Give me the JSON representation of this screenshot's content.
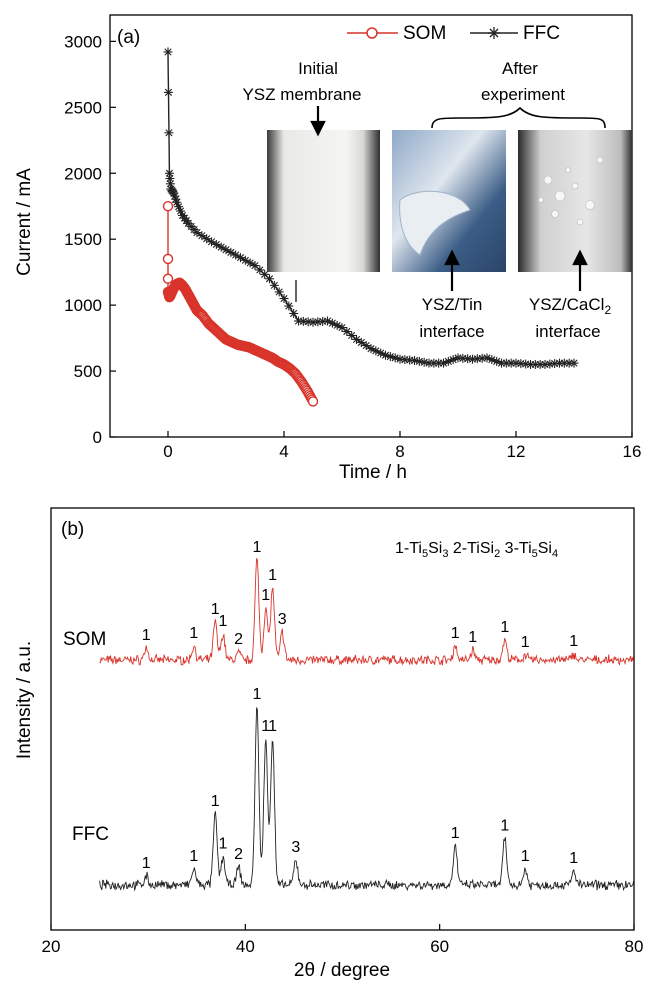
{
  "chart_data": [
    {
      "type": "line",
      "panel_label": "(a)",
      "xlabel": "Time / h",
      "ylabel": "Current / mA",
      "xlim": [
        -2,
        16
      ],
      "ylim": [
        0,
        3200
      ],
      "xticks": [
        "0",
        "4",
        "8",
        "12",
        "16"
      ],
      "yticks": [
        "0",
        "500",
        "1000",
        "1500",
        "2000",
        "2500",
        "3000"
      ],
      "legend_position": "top-right",
      "series": [
        {
          "name": "SOM",
          "color": "#d9342b",
          "marker": "open-circle",
          "x": [
            0,
            0,
            0,
            0,
            0.05,
            0.1,
            0.2,
            0.3,
            0.4,
            0.5,
            0.6,
            0.7,
            0.8,
            0.9,
            1.0,
            1.1,
            1.2,
            1.4,
            1.6,
            1.8,
            2.0,
            2.2,
            2.4,
            2.6,
            2.8,
            3.0,
            3.2,
            3.4,
            3.6,
            3.8,
            4.0,
            4.2,
            4.4,
            4.6,
            4.8,
            5.0
          ],
          "y": [
            1750,
            1350,
            1200,
            1100,
            1060,
            1080,
            1130,
            1160,
            1170,
            1150,
            1120,
            1080,
            1040,
            1000,
            960,
            940,
            920,
            860,
            820,
            780,
            740,
            720,
            700,
            690,
            680,
            660,
            640,
            620,
            600,
            570,
            550,
            520,
            480,
            420,
            350,
            270
          ]
        },
        {
          "name": "FFC",
          "color": "#222222",
          "marker": "asterisk",
          "x": [
            0,
            0.05,
            0.1,
            0.2,
            0.3,
            0.5,
            0.7,
            1.0,
            1.5,
            2.0,
            2.5,
            3.0,
            3.5,
            4.0,
            4.5,
            5.0,
            5.5,
            6.0,
            6.5,
            7.0,
            7.5,
            8.0,
            8.5,
            9.0,
            9.5,
            10.0,
            10.5,
            11.0,
            11.5,
            12.0,
            12.5,
            13.0,
            13.5,
            14.0
          ],
          "y": [
            2920,
            2000,
            1880,
            1850,
            1780,
            1680,
            1620,
            1550,
            1480,
            1420,
            1360,
            1300,
            1200,
            1050,
            880,
            870,
            880,
            830,
            740,
            670,
            620,
            590,
            580,
            560,
            560,
            600,
            590,
            600,
            560,
            560,
            550,
            550,
            560,
            560
          ]
        }
      ],
      "annotations": [
        "Initial",
        "YSZ membrane",
        "After",
        "experiment",
        "YSZ/Tin",
        "interface",
        "YSZ/CaCl2",
        "interface"
      ]
    },
    {
      "type": "line",
      "panel_label": "(b)",
      "xlabel": "2θ / degree",
      "ylabel": "Intensity / a.u.",
      "xlim": [
        20,
        80
      ],
      "xticks": [
        "20",
        "40",
        "60",
        "80"
      ],
      "legend_text": "1-Ti5Si3  2-TiSi2  3-Ti5Si4",
      "series": [
        {
          "name": "SOM",
          "color": "#d9342b",
          "peaks": [
            {
              "x": 29.8,
              "h": 0.12,
              "label": "1"
            },
            {
              "x": 34.7,
              "h": 0.14,
              "label": "1"
            },
            {
              "x": 36.9,
              "h": 0.38,
              "label": "1"
            },
            {
              "x": 37.7,
              "h": 0.26,
              "label": "1"
            },
            {
              "x": 39.3,
              "h": 0.08,
              "label": "2"
            },
            {
              "x": 41.2,
              "h": 1.0,
              "label": "1"
            },
            {
              "x": 42.1,
              "h": 0.52,
              "label": "1"
            },
            {
              "x": 42.8,
              "h": 0.72,
              "label": "1"
            },
            {
              "x": 43.8,
              "h": 0.28,
              "label": "3"
            },
            {
              "x": 61.6,
              "h": 0.14,
              "label": "1"
            },
            {
              "x": 63.4,
              "h": 0.1,
              "label": "1"
            },
            {
              "x": 66.7,
              "h": 0.2,
              "label": "1"
            },
            {
              "x": 68.8,
              "h": 0.05,
              "label": "1"
            },
            {
              "x": 73.8,
              "h": 0.06,
              "label": "1"
            }
          ]
        },
        {
          "name": "FFC",
          "color": "#222222",
          "peaks": [
            {
              "x": 29.8,
              "h": 0.05,
              "label": "1"
            },
            {
              "x": 34.7,
              "h": 0.09,
              "label": "1"
            },
            {
              "x": 36.9,
              "h": 0.4,
              "label": "1"
            },
            {
              "x": 37.7,
              "h": 0.16,
              "label": "1"
            },
            {
              "x": 39.3,
              "h": 0.1,
              "label": "2"
            },
            {
              "x": 41.2,
              "h": 1.0,
              "label": "1"
            },
            {
              "x": 42.1,
              "h": 0.82,
              "label": "1"
            },
            {
              "x": 42.8,
              "h": 0.82,
              "label": "1"
            },
            {
              "x": 45.2,
              "h": 0.14,
              "label": "3"
            },
            {
              "x": 61.6,
              "h": 0.22,
              "label": "1"
            },
            {
              "x": 66.7,
              "h": 0.26,
              "label": "1"
            },
            {
              "x": 68.8,
              "h": 0.09,
              "label": "1"
            },
            {
              "x": 73.8,
              "h": 0.08,
              "label": "1"
            }
          ]
        }
      ]
    }
  ]
}
